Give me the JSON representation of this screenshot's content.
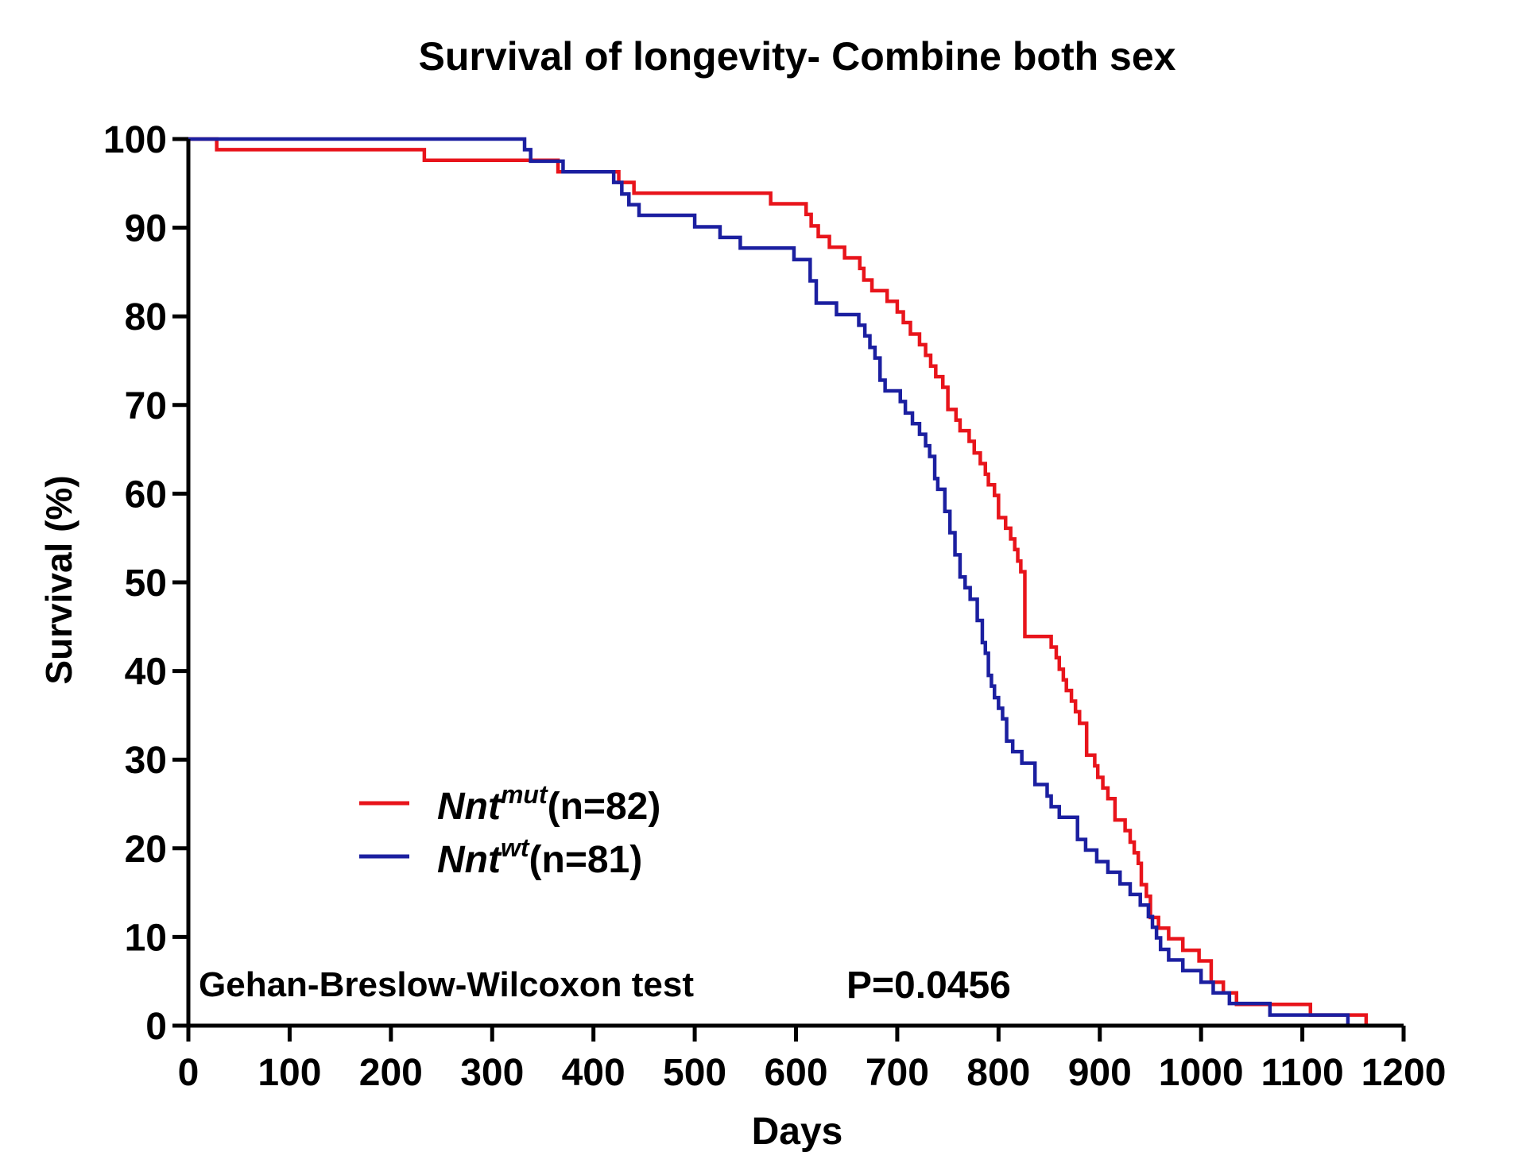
{
  "chart_data": {
    "type": "line",
    "step": true,
    "title": "Survival of longevity- Combine both sex",
    "xlabel": "Days",
    "ylabel": "Survival (%)",
    "xlim": [
      0,
      1200
    ],
    "ylim": [
      0,
      100
    ],
    "xticks": [
      0,
      100,
      200,
      300,
      400,
      500,
      600,
      700,
      800,
      900,
      1000,
      1100,
      1200
    ],
    "yticks": [
      0,
      10,
      20,
      30,
      40,
      50,
      60,
      70,
      80,
      90,
      100
    ],
    "grid": false,
    "legend_position": "lower-left",
    "annotation": "Gehan-Breslow-Wilcoxon test",
    "p_value": "P=0.0456",
    "series": [
      {
        "name": "Nnt",
        "superscript": "mut",
        "n_label": "(n=82)",
        "color": "#e8141b",
        "x": [
          0,
          28,
          233,
          365,
          425,
          440,
          575,
          610,
          615,
          622,
          633,
          648,
          663,
          667,
          675,
          690,
          700,
          706,
          713,
          722,
          728,
          733,
          738,
          745,
          750,
          758,
          762,
          771,
          776,
          782,
          787,
          790,
          796,
          800,
          807,
          812,
          816,
          819,
          822,
          826,
          852,
          857,
          860,
          864,
          867,
          872,
          876,
          880,
          887,
          895,
          898,
          903,
          908,
          915,
          925,
          930,
          934,
          938,
          941,
          946,
          950,
          958,
          968,
          982,
          998,
          1010,
          1022,
          1035,
          1040,
          1108,
          1140,
          1150,
          1163
        ],
        "y": [
          100,
          98.8,
          97.6,
          96.3,
          95.1,
          93.9,
          92.7,
          91.5,
          90.2,
          89.0,
          87.8,
          86.6,
          85.4,
          84.1,
          82.9,
          81.7,
          80.5,
          79.3,
          78.0,
          76.8,
          75.6,
          74.4,
          73.2,
          72.0,
          69.5,
          68.3,
          67.1,
          65.9,
          64.6,
          63.4,
          62.2,
          61.0,
          59.8,
          57.3,
          56.1,
          54.9,
          53.7,
          52.4,
          51.2,
          43.9,
          42.7,
          41.5,
          40.2,
          39.0,
          37.8,
          36.6,
          35.4,
          34.1,
          30.5,
          29.3,
          28.0,
          26.8,
          25.6,
          23.2,
          22.0,
          20.7,
          19.5,
          18.3,
          15.9,
          14.6,
          12.2,
          11.0,
          9.8,
          8.5,
          7.3,
          4.9,
          3.7,
          2.4,
          2.4,
          1.2,
          1.2,
          1.2,
          0
        ]
      },
      {
        "name": "Nnt",
        "superscript": "wt",
        "n_label": "(n=81)",
        "color": "#1b1fa0",
        "x": [
          0,
          332,
          338,
          370,
          382,
          420,
          428,
          435,
          445,
          500,
          525,
          530,
          545,
          555,
          598,
          614,
          620,
          625,
          640,
          653,
          662,
          668,
          673,
          678,
          683,
          688,
          695,
          703,
          708,
          715,
          722,
          728,
          732,
          737,
          740,
          747,
          752,
          757,
          762,
          767,
          772,
          779,
          784,
          787,
          790,
          793,
          796,
          800,
          804,
          808,
          814,
          818,
          823,
          836,
          848,
          852,
          860,
          878,
          886,
          897,
          908,
          920,
          930,
          940,
          948,
          952,
          956,
          960,
          968,
          974,
          982,
          1000,
          1012,
          1028,
          1040,
          1068,
          1088,
          1145,
          1148
        ],
        "y": [
          100,
          98.8,
          97.5,
          96.3,
          96.3,
          95.1,
          93.8,
          92.6,
          91.4,
          90.1,
          88.9,
          88.9,
          87.7,
          87.7,
          86.4,
          84.0,
          81.5,
          81.5,
          80.2,
          80.2,
          79.0,
          77.8,
          76.5,
          75.3,
          72.8,
          71.6,
          71.6,
          70.4,
          69.1,
          67.9,
          66.7,
          65.4,
          64.2,
          61.7,
          60.5,
          58.0,
          55.6,
          53.1,
          50.6,
          49.4,
          48.1,
          45.7,
          43.2,
          42.0,
          39.5,
          38.3,
          37.0,
          35.8,
          34.6,
          32.1,
          30.9,
          30.9,
          29.6,
          27.2,
          25.9,
          24.7,
          23.5,
          21.0,
          19.8,
          18.5,
          17.3,
          16.0,
          14.8,
          13.6,
          12.3,
          11.1,
          9.9,
          8.6,
          7.4,
          7.4,
          6.2,
          4.9,
          3.7,
          2.5,
          2.5,
          1.2,
          1.2,
          0,
          0
        ]
      }
    ]
  }
}
